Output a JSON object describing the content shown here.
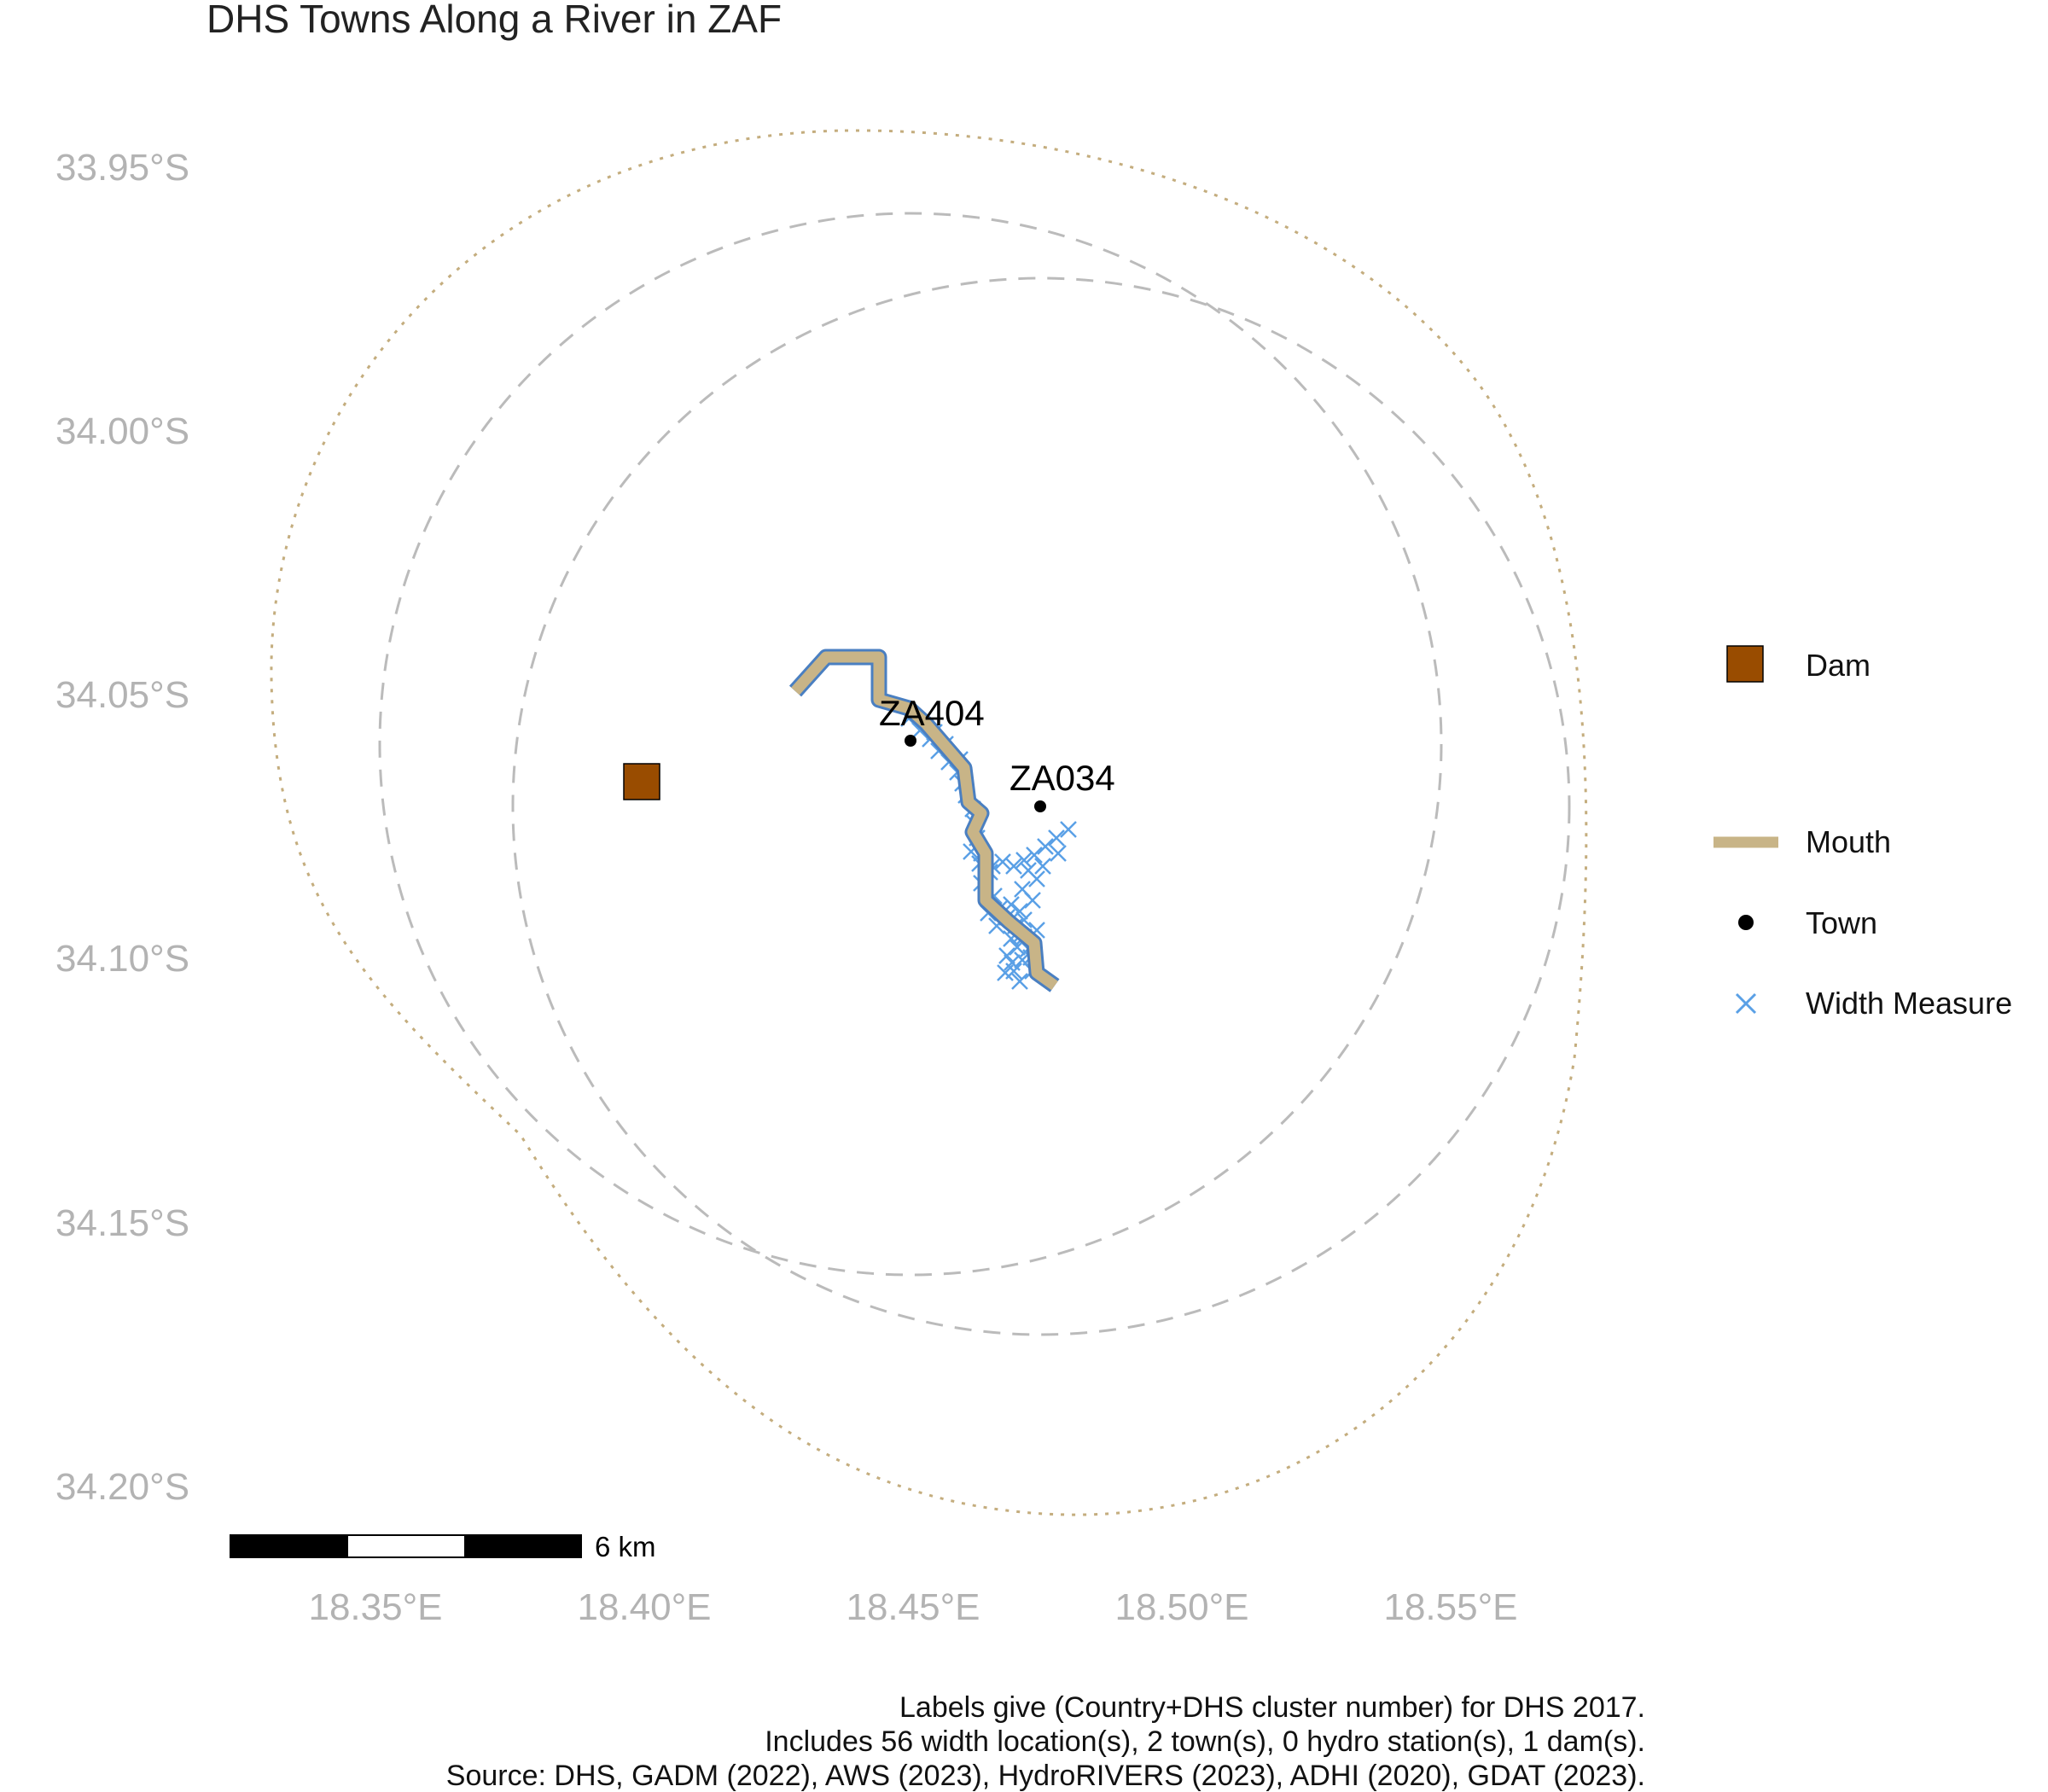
{
  "title": "DHS Towns Along a River in ZAF",
  "axes": {
    "y_labels": [
      "33.95°S",
      "34.00°S",
      "34.05°S",
      "34.10°S",
      "34.15°S",
      "34.20°S"
    ],
    "x_labels": [
      "18.35°E",
      "18.40°E",
      "18.45°E",
      "18.50°E",
      "18.55°E"
    ]
  },
  "towns": [
    {
      "id": "ZA404",
      "lon": 18.449,
      "lat": -34.059
    },
    {
      "id": "ZA034",
      "lon": 18.473,
      "lat": -34.071
    }
  ],
  "dam": {
    "lon": 18.4,
    "lat": -34.066
  },
  "legend": {
    "dam": "Dam",
    "mouth": "Mouth",
    "town": "Town",
    "width_measure": "Width Measure"
  },
  "scale_bar": {
    "label": "6 km"
  },
  "caption": [
    "Labels give (Country+DHS cluster number) for DHS 2017.",
    "Includes 56 width location(s), 2 town(s), 0 hydro station(s), 1 dam(s).",
    "Source: DHS, GADM (2022), AWS (2023), HydroRIVERS (2023), ADHI (2020), GDAT (2023)."
  ],
  "colors": {
    "dam_fill": "#994c00",
    "mouth": "#c8b487",
    "river": "#4a7fc1",
    "width_measure": "#5aa0e6",
    "buffer_dashed": "#bbbbbb",
    "buffer_dotted": "#c4ad7e",
    "axis_text": "#b3b3b3"
  }
}
